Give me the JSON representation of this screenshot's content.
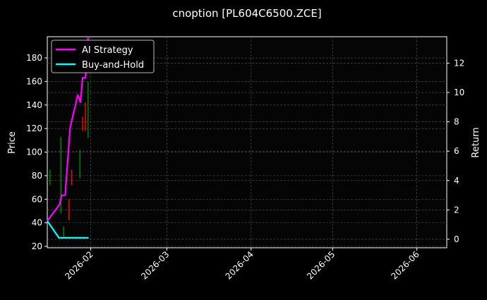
{
  "chart_data": {
    "type": "line",
    "title": "cnoption [PL604C6500.ZCE]",
    "ylabel_left": "Price",
    "ylabel_right": "Return",
    "xlim": [
      "2026-01-16",
      "2026-06-12"
    ],
    "ylim_left": [
      18.8,
      198
    ],
    "ylim_right": [
      -0.58,
      13.8
    ],
    "x_ticks": [
      "2026-02",
      "2026-03",
      "2026-04",
      "2026-05",
      "2026-06"
    ],
    "x_tick_dates": [
      "2026-02-01",
      "2026-03-01",
      "2026-04-01",
      "2026-05-01",
      "2026-06-01"
    ],
    "y_ticks_left": [
      20,
      40,
      60,
      80,
      100,
      120,
      140,
      160,
      180
    ],
    "y_ticks_right": [
      0,
      2,
      4,
      6,
      8,
      10,
      12
    ],
    "grid": true,
    "legend_placement": "top-left",
    "colors": {
      "up": "#008000",
      "down": "#ff0000",
      "ai": "#ff00ff",
      "bh": "#00ffff",
      "background": "#000000",
      "axes": "#050505"
    },
    "candles": [
      {
        "date": "2026-01-17",
        "high": 85,
        "low": 72,
        "color": "up"
      },
      {
        "date": "2026-01-21",
        "high": 113,
        "low": 48,
        "color": "up"
      },
      {
        "date": "2026-01-22",
        "high": 37,
        "low": 28,
        "color": "up"
      },
      {
        "date": "2026-01-24",
        "high": 60,
        "low": 42,
        "color": "down"
      },
      {
        "date": "2026-01-25",
        "high": 85,
        "low": 72,
        "color": "down"
      },
      {
        "date": "2026-01-28",
        "high": 102,
        "low": 78,
        "color": "up"
      },
      {
        "date": "2026-01-29",
        "high": 130,
        "low": 118,
        "color": "down"
      },
      {
        "date": "2026-01-30",
        "high": 142,
        "low": 118,
        "color": "down"
      },
      {
        "date": "2026-01-31",
        "high": 160,
        "low": 112,
        "color": "up"
      }
    ],
    "series": [
      {
        "name": "AI Strategy",
        "axis": "right",
        "color": "#ff00ff",
        "x": [
          "2026-01-16",
          "2026-01-20.5",
          "2026-01-21.3",
          "2026-01-22.6",
          "2026-01-24.4",
          "2026-01-27.2",
          "2026-01-27.7",
          "2026-01-28.2",
          "2026-01-29",
          "2026-01-30",
          "2026-01-30.7",
          "2026-01-31"
        ],
        "values": [
          1.25,
          2.36,
          3.0,
          3.0,
          7.6,
          9.8,
          9.65,
          9.3,
          11.0,
          11.0,
          12.0,
          13.8
        ]
      },
      {
        "name": "Buy-and-Hold",
        "axis": "right",
        "color": "#00ffff",
        "x": [
          "2026-01-16",
          "2026-01-20.3",
          "2026-01-31.2"
        ],
        "values": [
          1.25,
          0.1,
          0.1
        ]
      }
    ]
  }
}
